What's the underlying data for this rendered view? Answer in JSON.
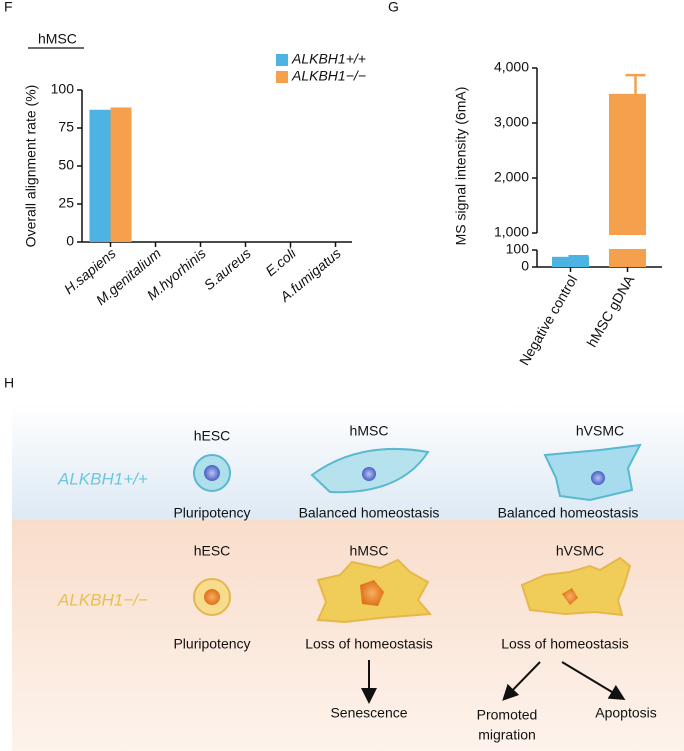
{
  "chart_data": [
    {
      "type": "bar",
      "panel": "F",
      "title": "hMSC",
      "ylabel": "Overall alignment rate (%)",
      "categories": [
        "H.sapiens",
        "M.genitalium",
        "M.hyorhinis",
        "S.aureus",
        "E.coli",
        "A.fumigatus"
      ],
      "series": [
        {
          "name": "ALKBH1+/+",
          "color": "#4db3e2",
          "values": [
            87,
            0,
            0,
            0,
            0,
            0
          ]
        },
        {
          "name": "ALKBH1−/−",
          "color": "#f4a04c",
          "values": [
            88.5,
            0,
            0,
            0,
            0,
            0
          ]
        }
      ],
      "ylim": [
        0,
        100
      ],
      "yticks": [
        0,
        25,
        50,
        75,
        100
      ],
      "legend": "top-right"
    },
    {
      "type": "bar",
      "panel": "G",
      "ylabel": "MS signal intensity (6mA)",
      "categories": [
        "Negative control",
        "hMSC gDNA"
      ],
      "values": [
        60,
        3530
      ],
      "errors": [
        3,
        340
      ],
      "colors": [
        "#4db3e2",
        "#f4a04c"
      ],
      "ylim": [
        0,
        4000
      ],
      "ybreak": [
        100,
        1000
      ],
      "yticks": [
        0,
        100,
        {
          "value": 1000,
          "label": "1,000"
        },
        {
          "value": 2000,
          "label": "2,000"
        },
        {
          "value": 3000,
          "label": "3,000"
        },
        {
          "value": 4000,
          "label": "4,000"
        }
      ]
    }
  ],
  "diagram": {
    "panel": "H",
    "rows": [
      {
        "label": "ALKBH1+/+",
        "cells": [
          {
            "title": "hESC",
            "caption": "Pluripotency"
          },
          {
            "title": "hMSC",
            "caption": "Balanced homeostasis"
          },
          {
            "title": "hVSMC",
            "caption": "Balanced homeostasis"
          }
        ]
      },
      {
        "label": "ALKBH1−/−",
        "cells": [
          {
            "title": "hESC",
            "caption": "Pluripotency"
          },
          {
            "title": "hMSC",
            "caption": "Loss of homeostasis"
          },
          {
            "title": "hVSMC",
            "caption": "Loss of homeostasis"
          }
        ]
      }
    ],
    "outcomes": [
      [
        "Senescence"
      ],
      [
        "Promoted",
        "migration"
      ],
      [
        "Apoptosis"
      ]
    ]
  }
}
